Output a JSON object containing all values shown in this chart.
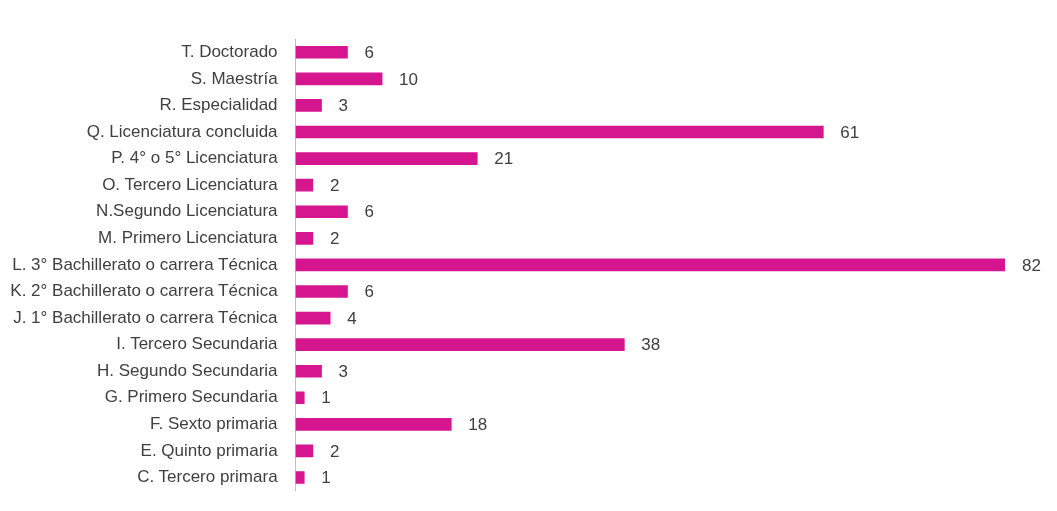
{
  "chart_data": {
    "type": "bar",
    "orientation": "horizontal",
    "categories": [
      "T. Doctorado",
      "S. Maestría",
      "R. Especialidad",
      "Q. Licenciatura concluida",
      "P. 4° o 5° Licenciatura",
      "O. Tercero Licenciatura",
      "N.Segundo Licenciatura",
      "M. Primero Licenciatura",
      "L. 3° Bachillerato o carrera Técnica",
      "K. 2° Bachillerato o carrera Técnica",
      "J. 1° Bachillerato o carrera Técnica",
      "I. Tercero Secundaria",
      "H. Segundo Secundaria",
      "G. Primero Secundaria",
      "F. Sexto primaria",
      "E. Quinto primaria",
      "C. Tercero primara"
    ],
    "values": [
      6,
      10,
      3,
      61,
      21,
      2,
      6,
      2,
      82,
      6,
      4,
      38,
      3,
      1,
      18,
      2,
      1
    ],
    "color": "#d6168f",
    "data_labels": true,
    "grid": false,
    "legend": false
  }
}
